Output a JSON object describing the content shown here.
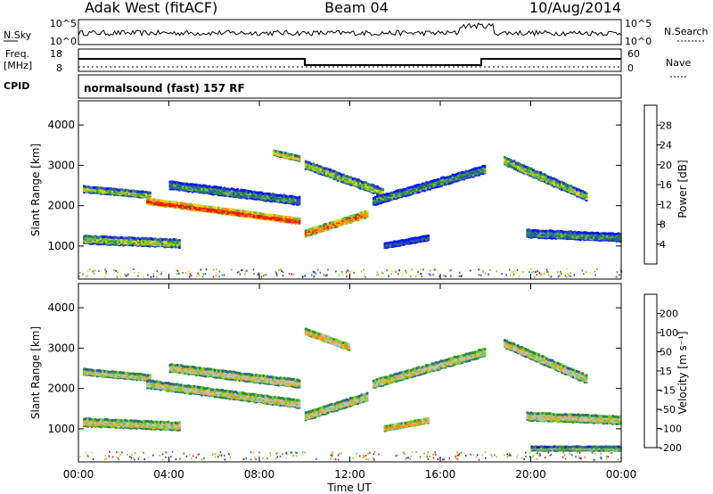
{
  "header": {
    "title_left": "Adak West (fitACF)",
    "title_center": "Beam 04",
    "title_right": "10/Aug/2014"
  },
  "strip_panels": {
    "nsky_label": "N.Sky",
    "nsky_ticks": [
      "10^5",
      "10^0"
    ],
    "nsearch_label": "N.Search",
    "nsearch_ticks": [
      "10^5",
      "10^0"
    ],
    "freq_label": "Freq.",
    "freq_unit": "[MHz]",
    "freq_ticks": [
      "18",
      "8"
    ],
    "nave_label": "Nave",
    "nave_ticks": [
      "60",
      "0"
    ],
    "cpid_label": "CPID",
    "cpid_text": "normalsound (fast) 157 RF"
  },
  "chart_data": [
    {
      "type": "heatmap",
      "name": "power",
      "ylabel": "Slant Range [km]",
      "xlabel": "Time UT",
      "x_ticks": [
        "00:00",
        "04:00",
        "08:00",
        "12:00",
        "16:00",
        "20:00",
        "00:00"
      ],
      "xlim_hours": [
        0,
        24
      ],
      "ylim_km": [
        180,
        4600
      ],
      "y_ticks": [
        1000,
        2000,
        3000,
        4000
      ],
      "colorbar": {
        "label": "Power [dB]",
        "ticks": [
          "4",
          "8",
          "12",
          "16",
          "20",
          "24",
          "28"
        ],
        "colors": [
          "#0a14ff",
          "#2a4ba8",
          "#2f8a5a",
          "#7ac13f",
          "#f0d21e",
          "#ff8c00",
          "#e81b0a"
        ]
      },
      "echo_bands": [
        {
          "t0": 0.2,
          "t1": 3.2,
          "r_start": 2400,
          "r_end": 2250,
          "width": 150,
          "level": 3
        },
        {
          "t0": 0.2,
          "t1": 4.5,
          "r_start": 1150,
          "r_end": 1050,
          "width": 200,
          "level": 3
        },
        {
          "t0": 3.0,
          "t1": 9.8,
          "r_start": 2100,
          "r_end": 1600,
          "width": 140,
          "level": 6
        },
        {
          "t0": 4.0,
          "t1": 9.8,
          "r_start": 2500,
          "r_end": 2100,
          "width": 200,
          "level": 2
        },
        {
          "t0": 10.0,
          "t1": 12.8,
          "r_start": 1300,
          "r_end": 1800,
          "width": 160,
          "level": 5
        },
        {
          "t0": 10.0,
          "t1": 13.5,
          "r_start": 3000,
          "r_end": 2300,
          "width": 200,
          "level": 3
        },
        {
          "t0": 13.0,
          "t1": 18.0,
          "r_start": 2100,
          "r_end": 2900,
          "width": 200,
          "level": 2
        },
        {
          "t0": 18.8,
          "t1": 22.5,
          "r_start": 3100,
          "r_end": 2200,
          "width": 200,
          "level": 3
        },
        {
          "t0": 19.8,
          "t1": 24.0,
          "r_start": 1300,
          "r_end": 1200,
          "width": 200,
          "level": 2
        },
        {
          "t0": 13.5,
          "t1": 15.5,
          "r_start": 1000,
          "r_end": 1200,
          "width": 120,
          "level": 1
        },
        {
          "t0": 8.6,
          "t1": 9.8,
          "r_start": 3300,
          "r_end": 3150,
          "width": 120,
          "level": 4
        }
      ]
    },
    {
      "type": "heatmap",
      "name": "velocity",
      "ylabel": "Slant Range [km]",
      "xlabel": "Time UT",
      "x_ticks": [
        "00:00",
        "04:00",
        "08:00",
        "12:00",
        "16:00",
        "20:00",
        "00:00"
      ],
      "xlim_hours": [
        0,
        24
      ],
      "ylim_km": [
        180,
        4600
      ],
      "y_ticks": [
        1000,
        2000,
        3000,
        4000
      ],
      "colorbar": {
        "label": "Velocity [m s⁻¹]",
        "ticks": [
          "200",
          "100",
          "50",
          "15",
          "-15",
          "-50",
          "-100",
          "-200"
        ],
        "colors": [
          "#1e1eb4",
          "#2f5aa8",
          "#2f8a3a",
          "#6ccb2a",
          "#c0c0c0",
          "#f0a818",
          "#ff7a00",
          "#e81b0a"
        ]
      },
      "echo_bands": [
        {
          "t0": 0.2,
          "t1": 3.2,
          "r_start": 2400,
          "r_end": 2250,
          "width": 150,
          "level": 4
        },
        {
          "t0": 0.2,
          "t1": 4.5,
          "r_start": 1150,
          "r_end": 1050,
          "width": 200,
          "level": 4
        },
        {
          "t0": 3.0,
          "t1": 9.8,
          "r_start": 2100,
          "r_end": 1600,
          "width": 200,
          "level": 4
        },
        {
          "t0": 4.0,
          "t1": 9.8,
          "r_start": 2500,
          "r_end": 2100,
          "width": 200,
          "level": 4
        },
        {
          "t0": 10.0,
          "t1": 12.8,
          "r_start": 1300,
          "r_end": 1800,
          "width": 200,
          "level": 4
        },
        {
          "t0": 10.0,
          "t1": 12.0,
          "r_start": 3400,
          "r_end": 3000,
          "width": 150,
          "level": 5
        },
        {
          "t0": 13.0,
          "t1": 18.0,
          "r_start": 2100,
          "r_end": 2900,
          "width": 200,
          "level": 4
        },
        {
          "t0": 18.8,
          "t1": 22.5,
          "r_start": 3100,
          "r_end": 2200,
          "width": 200,
          "level": 4
        },
        {
          "t0": 19.8,
          "t1": 24.0,
          "r_start": 1300,
          "r_end": 1200,
          "width": 200,
          "level": 4
        },
        {
          "t0": 13.5,
          "t1": 15.5,
          "r_start": 1000,
          "r_end": 1200,
          "width": 120,
          "level": 5
        },
        {
          "t0": 20.0,
          "t1": 24.0,
          "r_start": 500,
          "r_end": 500,
          "width": 100,
          "level": 3
        }
      ]
    }
  ]
}
